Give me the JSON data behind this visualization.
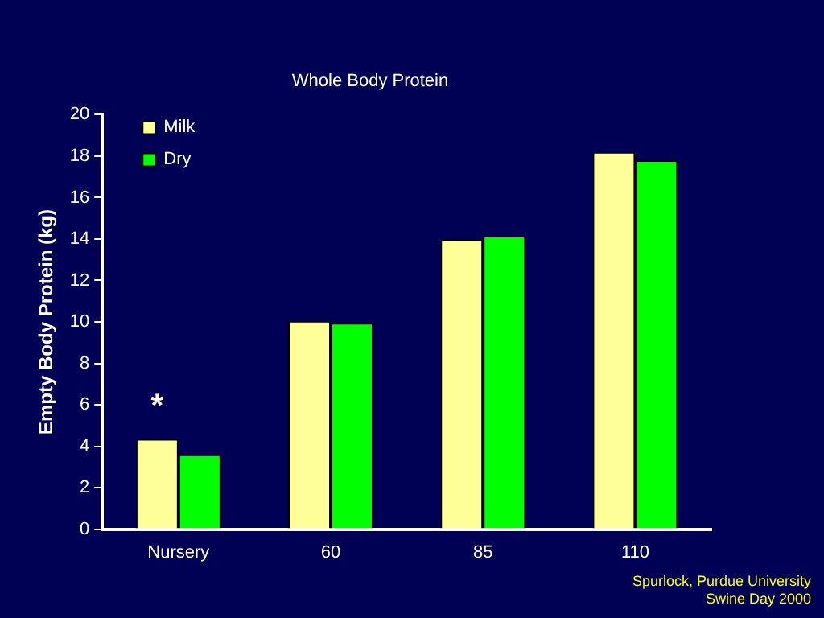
{
  "chart_data": {
    "type": "bar",
    "title": "Whole Body Protein",
    "ylabel": "Empty Body Protein (kg)",
    "categories": [
      "Nursery",
      "60",
      "85",
      "110"
    ],
    "series": [
      {
        "name": "Milk",
        "color": "#ffff99",
        "values": [
          4.35,
          10.05,
          14.0,
          18.2
        ]
      },
      {
        "name": "Dry",
        "color": "#00ff00",
        "values": [
          3.6,
          9.95,
          14.15,
          17.8
        ]
      }
    ],
    "ylim": [
      0,
      20
    ],
    "yticks": [
      0,
      2,
      4,
      6,
      8,
      10,
      12,
      14,
      16,
      18,
      20
    ],
    "grid": false,
    "legend": "top left",
    "annotations": [
      {
        "text": "*",
        "x": "Nursery",
        "y": 4.35
      },
      "Spurlock, Purdue University\nSwine Day 2000"
    ]
  }
}
